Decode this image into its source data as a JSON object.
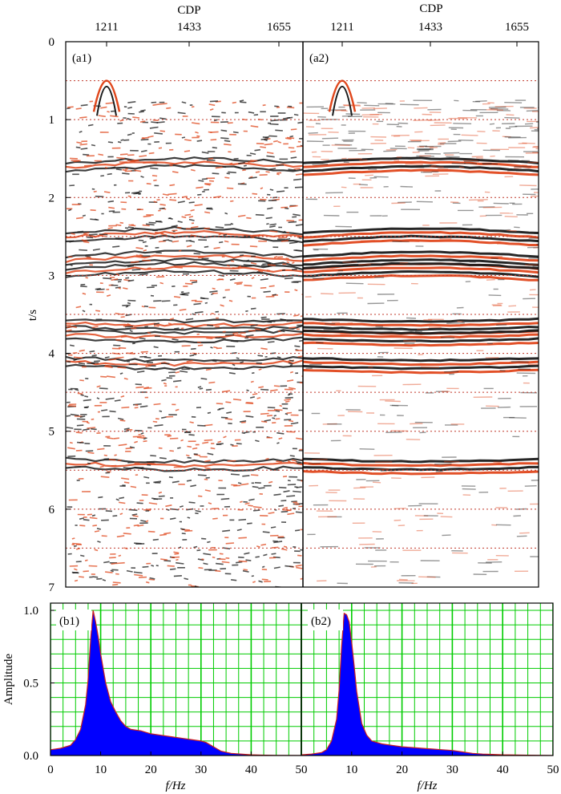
{
  "figure": {
    "seismic_panels": [
      {
        "label": "(a1)",
        "noise": "high"
      },
      {
        "label": "(a2)",
        "noise": "low"
      }
    ],
    "spectrum_panels": [
      {
        "label": "(b1)"
      },
      {
        "label": "(b2)"
      }
    ]
  },
  "chart_data": [
    {
      "type": "heatmap",
      "panels": [
        "(a1)",
        "(a2)"
      ],
      "xlabel": "CDP",
      "ylabel": "t/s",
      "x_ticks": [
        1211,
        1433,
        1655
      ],
      "y_ticks": [
        0,
        1,
        2,
        3,
        4,
        5,
        6,
        7
      ],
      "ylim": [
        0,
        7
      ],
      "reflectors_t_s": [
        1.6,
        2.5,
        2.8,
        2.95,
        3.6,
        3.75,
        4.1,
        5.4
      ],
      "reference_lines_t_s": [
        0.5,
        1.0,
        2.0,
        2.5,
        3.0,
        3.5,
        4.0,
        4.5,
        5.0,
        5.5,
        6.0,
        6.5
      ],
      "colors": {
        "positive": "#1a1a1a",
        "negative": "#e0471c",
        "reference_line": "#c0392b"
      }
    },
    {
      "type": "area",
      "panels": [
        "(b1)",
        "(b2)"
      ],
      "xlabel": "f/Hz",
      "ylabel": "Amplitude",
      "xlim": [
        0,
        50
      ],
      "ylim": [
        0,
        1.05
      ],
      "x_ticks": [
        0,
        10,
        20,
        30,
        40,
        50
      ],
      "y_ticks": [
        0.0,
        0.5,
        1.0
      ],
      "x_tick_labels": [
        "0",
        "10",
        "20",
        "30",
        "40",
        "50"
      ],
      "y_tick_labels": [
        "0.0",
        "0.5",
        "1.0"
      ],
      "grid": true,
      "colors": {
        "fill": "#0000ff",
        "edge": "#cc2020",
        "grid": "#00cc00"
      },
      "series": [
        {
          "x": [
            0,
            2,
            4,
            5,
            6,
            7,
            7.5,
            8,
            8.5,
            9,
            9.5,
            10,
            10.5,
            11,
            12,
            13,
            14,
            15,
            16,
            18,
            20,
            22,
            24,
            26,
            28,
            30,
            31,
            32,
            33,
            34,
            36,
            38,
            40,
            42,
            45,
            50
          ],
          "values": [
            0.04,
            0.05,
            0.07,
            0.11,
            0.18,
            0.35,
            0.52,
            0.8,
            1.0,
            0.92,
            0.82,
            0.7,
            0.6,
            0.5,
            0.37,
            0.3,
            0.24,
            0.2,
            0.18,
            0.17,
            0.15,
            0.14,
            0.13,
            0.12,
            0.11,
            0.1,
            0.09,
            0.07,
            0.05,
            0.03,
            0.015,
            0.01,
            0.005,
            0.003,
            0.001,
            0.0
          ]
        },
        {
          "x": [
            0,
            2,
            4,
            5,
            6,
            7,
            7.5,
            8,
            8.5,
            9,
            9.5,
            10,
            10.5,
            11,
            12,
            13,
            14,
            16,
            18,
            20,
            22,
            24,
            26,
            28,
            30,
            32,
            34,
            36,
            38,
            40,
            45,
            50
          ],
          "values": [
            0.005,
            0.01,
            0.02,
            0.04,
            0.1,
            0.25,
            0.45,
            0.75,
            0.98,
            0.97,
            0.92,
            0.78,
            0.62,
            0.44,
            0.22,
            0.14,
            0.1,
            0.08,
            0.07,
            0.06,
            0.055,
            0.05,
            0.045,
            0.04,
            0.035,
            0.025,
            0.015,
            0.01,
            0.008,
            0.005,
            0.002,
            0.0
          ]
        }
      ]
    }
  ]
}
